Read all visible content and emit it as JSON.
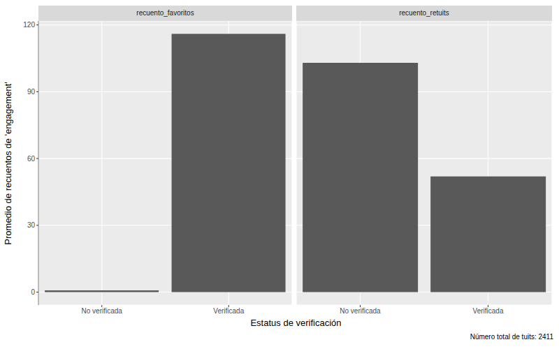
{
  "chart_data": {
    "type": "bar",
    "x_label": "Estatus de verificación",
    "y_label": "Promedio de recuentos de 'engagement'",
    "caption": "Número total de tuits: 2411",
    "color": "#595959",
    "grid": true,
    "ylim": [
      -5.8,
      121.8
    ],
    "yticks": [
      0,
      30,
      60,
      90,
      120
    ],
    "facets": [
      {
        "title": "recuento_favoritos",
        "categories": [
          "No verificada",
          "Verificada"
        ],
        "values": [
          0.8,
          116
        ]
      },
      {
        "title": "recuento_retuits",
        "categories": [
          "No verificada",
          "Verificada"
        ],
        "values": [
          103,
          52
        ]
      }
    ]
  }
}
